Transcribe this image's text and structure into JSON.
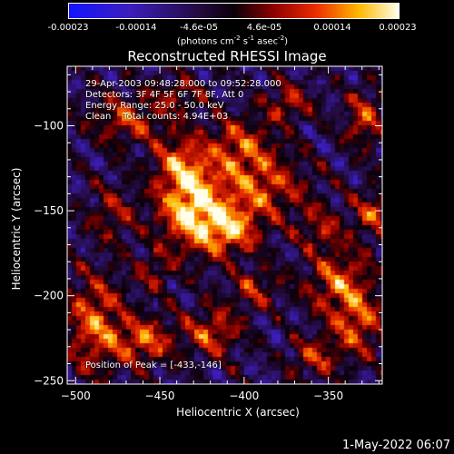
{
  "colorbar": {
    "ticks": [
      "-0.00023",
      "-0.00014",
      "-4.6e-05",
      "4.6e-05",
      "0.00014",
      "0.00023"
    ],
    "unit_main": "(photons cm",
    "unit_sup1": "-2",
    "unit_mid": " s",
    "unit_sup2": "-1",
    "unit_end": " asec",
    "unit_sup3": "-2",
    "unit_close": ")",
    "min": -0.00023,
    "max": 0.00023
  },
  "chart_data": {
    "type": "heatmap",
    "title": "Reconstructed RHESSI Image",
    "xlabel": "Heliocentric X (arcsec)",
    "ylabel": "Heliocentric Y (arcsec)",
    "xlim": [
      -505,
      -318
    ],
    "ylim": [
      -252,
      -65
    ],
    "xticks": [
      -500,
      -450,
      -400,
      -350
    ],
    "xtick_labels": [
      "−500",
      "−450",
      "−400",
      "−350"
    ],
    "yticks": [
      -100,
      -150,
      -200,
      -250
    ],
    "ytick_labels": [
      "−100",
      "−150",
      "−200",
      "−250"
    ],
    "peak_position": [
      -433,
      -146
    ],
    "sources": [
      {
        "x": -433,
        "y": -146,
        "sx": 14,
        "sy": 18,
        "a": 1.0
      },
      {
        "x": -410,
        "y": -160,
        "sx": 12,
        "sy": 10,
        "a": 0.75
      },
      {
        "x": -390,
        "y": -135,
        "sx": 18,
        "sy": 14,
        "a": 0.6
      },
      {
        "x": -405,
        "y": -110,
        "sx": 14,
        "sy": 12,
        "a": 0.55
      },
      {
        "x": -470,
        "y": -95,
        "sx": 16,
        "sy": 10,
        "a": 0.55
      },
      {
        "x": -440,
        "y": -120,
        "sx": 10,
        "sy": 10,
        "a": 0.5
      },
      {
        "x": -490,
        "y": -215,
        "sx": 12,
        "sy": 20,
        "a": 0.7
      },
      {
        "x": -460,
        "y": -225,
        "sx": 12,
        "sy": 10,
        "a": 0.65
      },
      {
        "x": -420,
        "y": -220,
        "sx": 12,
        "sy": 10,
        "a": 0.6
      },
      {
        "x": -345,
        "y": -190,
        "sx": 14,
        "sy": 12,
        "a": 0.6
      },
      {
        "x": -335,
        "y": -215,
        "sx": 12,
        "sy": 14,
        "a": 0.6
      },
      {
        "x": -325,
        "y": -150,
        "sx": 8,
        "sy": 10,
        "a": 0.55
      },
      {
        "x": -330,
        "y": -95,
        "sx": 8,
        "sy": 12,
        "a": 0.55
      },
      {
        "x": -360,
        "y": -235,
        "sx": 10,
        "sy": 8,
        "a": 0.5
      },
      {
        "x": -395,
        "y": -195,
        "sx": 10,
        "sy": 8,
        "a": 0.45
      },
      {
        "x": -480,
        "y": -150,
        "sx": 10,
        "sy": 12,
        "a": 0.4
      },
      {
        "x": -375,
        "y": -85,
        "sx": 10,
        "sy": 8,
        "a": 0.5
      },
      {
        "x": -440,
        "y": -80,
        "sx": 10,
        "sy": 8,
        "a": 0.4
      },
      {
        "x": -355,
        "y": -160,
        "sx": 10,
        "sy": 10,
        "a": 0.4
      },
      {
        "x": -455,
        "y": -185,
        "sx": 8,
        "sy": 8,
        "a": 0.35
      }
    ]
  },
  "info": {
    "line1": "29-Apr-2003 09:48:28.000 to 09:52:28.000",
    "line2": "Detectors: 3F 4F 5F 6F 7F 8F, Att 0",
    "line3": "Energy Range: 25.0 - 50.0 keV",
    "line4": "Clean    Total counts: 4.94E+03",
    "peak": "Position of Peak = [-433,-146]"
  },
  "footer": {
    "date": "1-May-2022 06:07"
  },
  "colors": {
    "background": "#000000",
    "axis": "#ffffff"
  }
}
